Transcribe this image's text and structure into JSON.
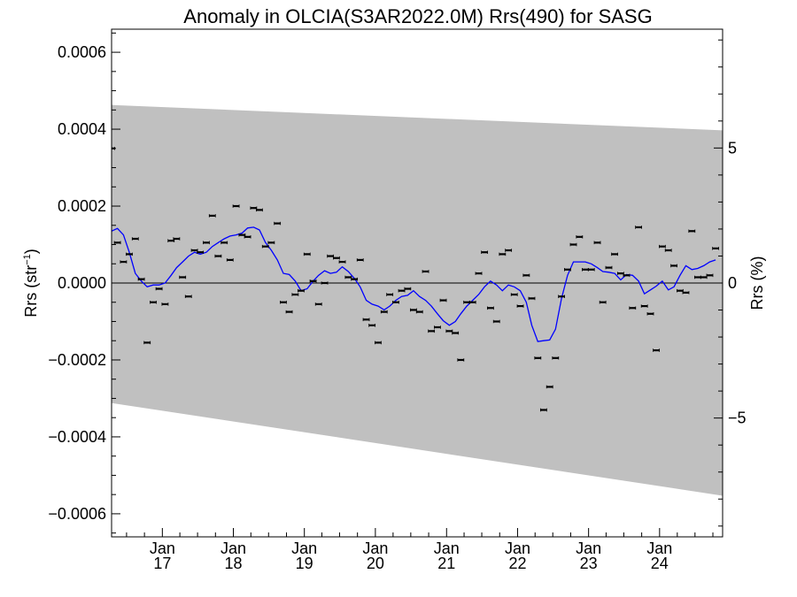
{
  "chart_data": {
    "type": "scatter",
    "title": "Anomaly in OLCIA(S3AR2022.0M) Rrs(490) for SASG",
    "ylabel": "Rrs (str",
    "ylabel_sup": "−1",
    "ylabel_close": ")",
    "y2label": "Rrs (%)",
    "xlabel": "",
    "x_range": [
      "2016-04-15",
      "2024-11-20"
    ],
    "ylim": [
      -0.00066,
      0.00066
    ],
    "y2lim": [
      -9.4,
      9.4
    ],
    "y_ticks": [
      {
        "value": 0.0006,
        "label": "0.0006"
      },
      {
        "value": 0.0004,
        "label": "0.0004"
      },
      {
        "value": 0.0002,
        "label": "0.0002"
      },
      {
        "value": 0.0,
        "label": "0.0000"
      },
      {
        "value": -0.0002,
        "label": "−0.0002"
      },
      {
        "value": -0.0004,
        "label": "−0.0004"
      },
      {
        "value": -0.0006,
        "label": "−0.0006"
      }
    ],
    "y2_ticks": [
      {
        "value": 5,
        "label": "5"
      },
      {
        "value": 0,
        "label": "0"
      },
      {
        "value": -5,
        "label": "−5"
      }
    ],
    "x_ticks": [
      {
        "date": "2017-01-01",
        "month": "Jan",
        "year": "17"
      },
      {
        "date": "2018-01-01",
        "month": "Jan",
        "year": "18"
      },
      {
        "date": "2019-01-01",
        "month": "Jan",
        "year": "19"
      },
      {
        "date": "2020-01-01",
        "month": "Jan",
        "year": "20"
      },
      {
        "date": "2021-01-01",
        "month": "Jan",
        "year": "21"
      },
      {
        "date": "2022-01-01",
        "month": "Jan",
        "year": "22"
      },
      {
        "date": "2023-01-01",
        "month": "Jan",
        "year": "23"
      },
      {
        "date": "2024-01-01",
        "month": "Jan",
        "year": "24"
      }
    ],
    "band": {
      "upper": [
        [
          "2016-04-15",
          0.000463
        ],
        [
          "2024-11-20",
          0.000397
        ]
      ],
      "lower": [
        [
          "2016-04-15",
          -0.000312
        ],
        [
          "2024-11-20",
          -0.000553
        ]
      ],
      "color": "#c0c0c0"
    },
    "zero_line": 0,
    "points": [
      [
        "2016-04-15",
        0.00035
      ],
      [
        "2016-05-15",
        0.000105
      ],
      [
        "2016-06-15",
        5.5e-05
      ],
      [
        "2016-07-15",
        7.5e-05
      ],
      [
        "2016-08-15",
        0.000115
      ],
      [
        "2016-09-15",
        1e-05
      ],
      [
        "2016-10-15",
        -0.000155
      ],
      [
        "2016-11-15",
        -5e-05
      ],
      [
        "2016-12-15",
        -1.5e-05
      ],
      [
        "2017-01-15",
        -5.5e-05
      ],
      [
        "2017-02-15",
        0.00011
      ],
      [
        "2017-03-15",
        0.000115
      ],
      [
        "2017-04-15",
        1.5e-05
      ],
      [
        "2017-05-15",
        -3.5e-05
      ],
      [
        "2017-06-15",
        8.5e-05
      ],
      [
        "2017-07-15",
        8e-05
      ],
      [
        "2017-08-15",
        0.000105
      ],
      [
        "2017-09-15",
        0.000175
      ],
      [
        "2017-10-15",
        7e-05
      ],
      [
        "2017-11-15",
        0.000105
      ],
      [
        "2017-12-15",
        6e-05
      ],
      [
        "2018-01-15",
        0.0002
      ],
      [
        "2018-02-15",
        0.000125
      ],
      [
        "2018-03-15",
        0.00012
      ],
      [
        "2018-04-15",
        0.000195
      ],
      [
        "2018-05-15",
        0.00019
      ],
      [
        "2018-06-15",
        9.5e-05
      ],
      [
        "2018-07-15",
        0.000105
      ],
      [
        "2018-08-15",
        0.000155
      ],
      [
        "2018-09-15",
        -5e-05
      ],
      [
        "2018-10-15",
        -7.5e-05
      ],
      [
        "2018-11-15",
        -3e-05
      ],
      [
        "2018-12-15",
        -2e-05
      ],
      [
        "2019-01-15",
        7.5e-05
      ],
      [
        "2019-02-15",
        5e-06
      ],
      [
        "2019-03-15",
        -5.5e-05
      ],
      [
        "2019-04-15",
        0.0
      ],
      [
        "2019-05-15",
        7e-05
      ],
      [
        "2019-06-15",
        6.5e-05
      ],
      [
        "2019-07-15",
        5.5e-05
      ],
      [
        "2019-08-15",
        1.5e-05
      ],
      [
        "2019-09-15",
        1e-05
      ],
      [
        "2019-10-15",
        6e-05
      ],
      [
        "2019-11-15",
        -9.5e-05
      ],
      [
        "2019-12-15",
        -0.00011
      ],
      [
        "2020-01-15",
        -0.000155
      ],
      [
        "2020-02-15",
        -7.5e-05
      ],
      [
        "2020-03-15",
        -3e-05
      ],
      [
        "2020-04-15",
        -5e-05
      ],
      [
        "2020-05-15",
        -2e-05
      ],
      [
        "2020-06-15",
        -1.5e-05
      ],
      [
        "2020-07-15",
        -7e-05
      ],
      [
        "2020-08-15",
        -7.5e-05
      ],
      [
        "2020-09-15",
        3e-05
      ],
      [
        "2020-10-15",
        -0.000125
      ],
      [
        "2020-11-15",
        -0.000115
      ],
      [
        "2020-12-15",
        -4.5e-05
      ],
      [
        "2021-01-15",
        -0.000125
      ],
      [
        "2021-02-15",
        -0.00013
      ],
      [
        "2021-03-15",
        -0.0002
      ],
      [
        "2021-04-15",
        -5e-05
      ],
      [
        "2021-05-15",
        -5e-05
      ],
      [
        "2021-06-15",
        2.5e-05
      ],
      [
        "2021-07-15",
        8e-05
      ],
      [
        "2021-08-15",
        -6.5e-05
      ],
      [
        "2021-09-15",
        -0.0001
      ],
      [
        "2021-10-15",
        7.5e-05
      ],
      [
        "2021-11-15",
        8.5e-05
      ],
      [
        "2021-12-15",
        -3e-05
      ],
      [
        "2022-01-15",
        -6e-05
      ],
      [
        "2022-02-15",
        2e-05
      ],
      [
        "2022-03-15",
        -4e-05
      ],
      [
        "2022-04-15",
        -0.000195
      ],
      [
        "2022-05-15",
        -0.00033
      ],
      [
        "2022-06-15",
        -0.00027
      ],
      [
        "2022-07-15",
        -0.000195
      ],
      [
        "2022-08-15",
        -3.5e-05
      ],
      [
        "2022-09-15",
        3.5e-05
      ],
      [
        "2022-10-15",
        0.0001
      ],
      [
        "2022-11-15",
        0.00012
      ],
      [
        "2022-12-15",
        3.5e-05
      ],
      [
        "2023-01-15",
        3.5e-05
      ],
      [
        "2023-02-15",
        0.000105
      ],
      [
        "2023-03-15",
        -5e-05
      ],
      [
        "2023-04-15",
        4e-05
      ],
      [
        "2023-05-15",
        7.5e-05
      ],
      [
        "2023-06-15",
        2.5e-05
      ],
      [
        "2023-07-15",
        2e-05
      ],
      [
        "2023-08-15",
        -6.5e-05
      ],
      [
        "2023-09-15",
        0.000145
      ],
      [
        "2023-10-15",
        -6e-05
      ],
      [
        "2023-11-15",
        -8e-05
      ],
      [
        "2023-12-15",
        -0.000175
      ],
      [
        "2024-01-15",
        9.5e-05
      ],
      [
        "2024-02-15",
        8.5e-05
      ],
      [
        "2024-03-15",
        4.5e-05
      ],
      [
        "2024-04-15",
        -2e-05
      ],
      [
        "2024-05-15",
        -2.5e-05
      ],
      [
        "2024-06-15",
        0.000135
      ],
      [
        "2024-07-15",
        1.5e-05
      ],
      [
        "2024-08-15",
        1.5e-05
      ],
      [
        "2024-09-15",
        2e-05
      ],
      [
        "2024-10-15",
        9e-05
      ]
    ],
    "smoothed": [
      [
        "2016-04-15",
        0.000135
      ],
      [
        "2016-05-15",
        0.000142
      ],
      [
        "2016-06-15",
        0.000125
      ],
      [
        "2016-07-15",
        8e-05
      ],
      [
        "2016-08-15",
        2.5e-05
      ],
      [
        "2016-09-15",
        5e-06
      ],
      [
        "2016-10-15",
        -1e-05
      ],
      [
        "2016-11-15",
        -5e-06
      ],
      [
        "2016-12-15",
        -5e-06
      ],
      [
        "2017-01-15",
        0.0
      ],
      [
        "2017-02-15",
        2e-05
      ],
      [
        "2017-03-15",
        4e-05
      ],
      [
        "2017-04-15",
        5.5e-05
      ],
      [
        "2017-05-15",
        7e-05
      ],
      [
        "2017-06-15",
        8e-05
      ],
      [
        "2017-07-15",
        7.5e-05
      ],
      [
        "2017-08-15",
        8e-05
      ],
      [
        "2017-09-15",
        9.5e-05
      ],
      [
        "2017-10-15",
        0.000105
      ],
      [
        "2017-11-15",
        0.000115
      ],
      [
        "2017-12-15",
        0.000122
      ],
      [
        "2018-01-15",
        0.000125
      ],
      [
        "2018-02-15",
        0.00013
      ],
      [
        "2018-03-15",
        0.000143
      ],
      [
        "2018-04-15",
        0.000145
      ],
      [
        "2018-05-15",
        0.000138
      ],
      [
        "2018-06-15",
        0.000105
      ],
      [
        "2018-07-15",
        8.5e-05
      ],
      [
        "2018-08-15",
        6e-05
      ],
      [
        "2018-09-15",
        2.5e-05
      ],
      [
        "2018-10-15",
        2.2e-05
      ],
      [
        "2018-11-15",
        5e-06
      ],
      [
        "2018-12-15",
        -2e-05
      ],
      [
        "2019-01-15",
        -1.5e-05
      ],
      [
        "2019-02-15",
        5e-06
      ],
      [
        "2019-03-15",
        2e-05
      ],
      [
        "2019-04-15",
        3.2e-05
      ],
      [
        "2019-05-15",
        2.5e-05
      ],
      [
        "2019-06-15",
        2.8e-05
      ],
      [
        "2019-07-15",
        4.2e-05
      ],
      [
        "2019-08-15",
        3e-05
      ],
      [
        "2019-09-15",
        1.2e-05
      ],
      [
        "2019-10-15",
        -1e-05
      ],
      [
        "2019-11-15",
        -4.5e-05
      ],
      [
        "2019-12-15",
        -5.5e-05
      ],
      [
        "2020-01-15",
        -6e-05
      ],
      [
        "2020-02-15",
        -7e-05
      ],
      [
        "2020-03-15",
        -6e-05
      ],
      [
        "2020-04-15",
        -4.5e-05
      ],
      [
        "2020-05-15",
        -3.5e-05
      ],
      [
        "2020-06-15",
        -3.2e-05
      ],
      [
        "2020-07-15",
        -2e-05
      ],
      [
        "2020-08-15",
        -3.5e-05
      ],
      [
        "2020-09-15",
        -4.5e-05
      ],
      [
        "2020-10-15",
        -6e-05
      ],
      [
        "2020-11-15",
        -8e-05
      ],
      [
        "2020-12-15",
        -9.8e-05
      ],
      [
        "2021-01-15",
        -0.00011
      ],
      [
        "2021-02-15",
        -0.0001
      ],
      [
        "2021-03-15",
        -8e-05
      ],
      [
        "2021-04-15",
        -6e-05
      ],
      [
        "2021-05-15",
        -4.5e-05
      ],
      [
        "2021-06-15",
        -3e-05
      ],
      [
        "2021-07-15",
        -1e-05
      ],
      [
        "2021-08-15",
        5e-06
      ],
      [
        "2021-09-15",
        -5e-06
      ],
      [
        "2021-10-15",
        -2e-05
      ],
      [
        "2021-11-15",
        -5e-06
      ],
      [
        "2021-12-15",
        -1e-05
      ],
      [
        "2022-01-15",
        -2e-05
      ],
      [
        "2022-02-15",
        -5e-05
      ],
      [
        "2022-03-15",
        -0.00011
      ],
      [
        "2022-04-15",
        -0.000152
      ],
      [
        "2022-05-15",
        -0.00015
      ],
      [
        "2022-06-15",
        -0.000148
      ],
      [
        "2022-07-15",
        -0.00012
      ],
      [
        "2022-08-15",
        -4e-05
      ],
      [
        "2022-09-15",
        2e-05
      ],
      [
        "2022-10-15",
        5.5e-05
      ],
      [
        "2022-11-15",
        5.5e-05
      ],
      [
        "2022-12-15",
        5.5e-05
      ],
      [
        "2023-01-15",
        5e-05
      ],
      [
        "2023-02-15",
        4e-05
      ],
      [
        "2023-03-15",
        3e-05
      ],
      [
        "2023-04-15",
        2.8e-05
      ],
      [
        "2023-05-15",
        2.5e-05
      ],
      [
        "2023-06-15",
        8e-06
      ],
      [
        "2023-07-15",
        2.2e-05
      ],
      [
        "2023-08-15",
        2e-05
      ],
      [
        "2023-09-15",
        5e-06
      ],
      [
        "2023-10-15",
        -2.8e-05
      ],
      [
        "2023-11-15",
        -1.8e-05
      ],
      [
        "2023-12-15",
        -8e-06
      ],
      [
        "2024-01-15",
        5e-06
      ],
      [
        "2024-02-15",
        -1.8e-05
      ],
      [
        "2024-03-15",
        -1e-05
      ],
      [
        "2024-04-15",
        2e-05
      ],
      [
        "2024-05-15",
        4.5e-05
      ],
      [
        "2024-06-15",
        3.5e-05
      ],
      [
        "2024-07-15",
        3.8e-05
      ],
      [
        "2024-08-15",
        4.5e-05
      ],
      [
        "2024-09-15",
        5.5e-05
      ],
      [
        "2024-10-15",
        6e-05
      ]
    ],
    "colors": {
      "smoothed_line": "#0000ff",
      "points": "#000000",
      "band": "#c0c0c0"
    },
    "grid": false,
    "legend": "none"
  }
}
